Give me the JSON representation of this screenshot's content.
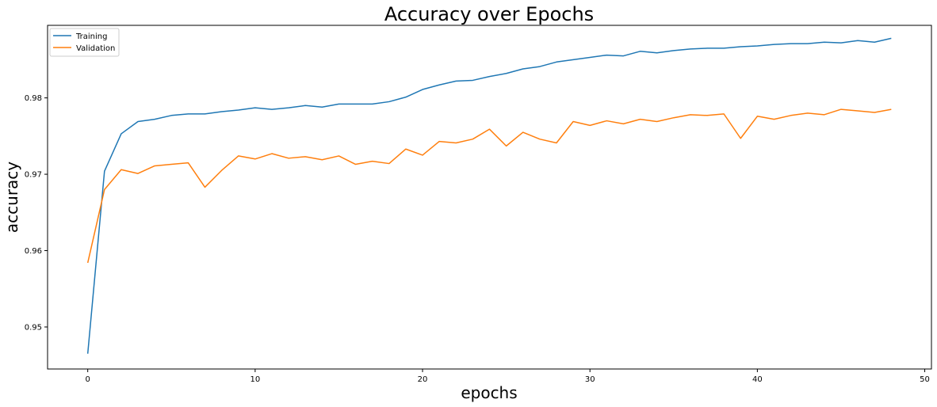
{
  "chart_data": {
    "type": "line",
    "title": "Accuracy over Epochs",
    "xlabel": "epochs",
    "ylabel": "accuracy",
    "xlim": [
      -2.4,
      50.4
    ],
    "ylim": [
      0.9445,
      0.9895
    ],
    "xticks": [
      0,
      10,
      20,
      30,
      40,
      50
    ],
    "yticks": [
      0.95,
      0.96,
      0.97,
      0.98
    ],
    "xtick_labels": [
      "0",
      "10",
      "20",
      "30",
      "40",
      "50"
    ],
    "ytick_labels": [
      "0.95",
      "0.96",
      "0.97",
      "0.98"
    ],
    "grid": false,
    "legend_position": "top-left",
    "x": [
      0,
      1,
      2,
      3,
      4,
      5,
      6,
      7,
      8,
      9,
      10,
      11,
      12,
      13,
      14,
      15,
      16,
      17,
      18,
      19,
      20,
      21,
      22,
      23,
      24,
      25,
      26,
      27,
      28,
      29,
      30,
      31,
      32,
      33,
      34,
      35,
      36,
      37,
      38,
      39,
      40,
      41,
      42,
      43,
      44,
      45,
      46,
      47,
      48
    ],
    "series": [
      {
        "name": "Training",
        "color": "#1f77b4",
        "values": [
          0.9465,
          0.9704,
          0.9753,
          0.9769,
          0.9772,
          0.9777,
          0.9779,
          0.9779,
          0.9782,
          0.9784,
          0.9787,
          0.9785,
          0.9787,
          0.979,
          0.9788,
          0.9792,
          0.9792,
          0.9792,
          0.9795,
          0.9801,
          0.9811,
          0.9817,
          0.9822,
          0.9823,
          0.9828,
          0.9832,
          0.9838,
          0.9841,
          0.9847,
          0.985,
          0.9853,
          0.9856,
          0.9855,
          0.9861,
          0.9859,
          0.9862,
          0.9864,
          0.9865,
          0.9865,
          0.9867,
          0.9868,
          0.987,
          0.9871,
          0.9871,
          0.9873,
          0.9872,
          0.9875,
          0.9873,
          0.9878
        ]
      },
      {
        "name": "Validation",
        "color": "#ff7f0e",
        "values": [
          0.9584,
          0.968,
          0.9706,
          0.9701,
          0.9711,
          0.9713,
          0.9715,
          0.9683,
          0.9705,
          0.9724,
          0.972,
          0.9727,
          0.9721,
          0.9723,
          0.9719,
          0.9724,
          0.9713,
          0.9717,
          0.9714,
          0.9733,
          0.9725,
          0.9743,
          0.9741,
          0.9746,
          0.9759,
          0.9737,
          0.9755,
          0.9746,
          0.9741,
          0.9769,
          0.9764,
          0.977,
          0.9766,
          0.9772,
          0.9769,
          0.9774,
          0.9778,
          0.9777,
          0.9779,
          0.9747,
          0.9776,
          0.9772,
          0.9777,
          0.978,
          0.9778,
          0.9785,
          0.9783,
          0.9781,
          0.9785
        ]
      }
    ]
  }
}
